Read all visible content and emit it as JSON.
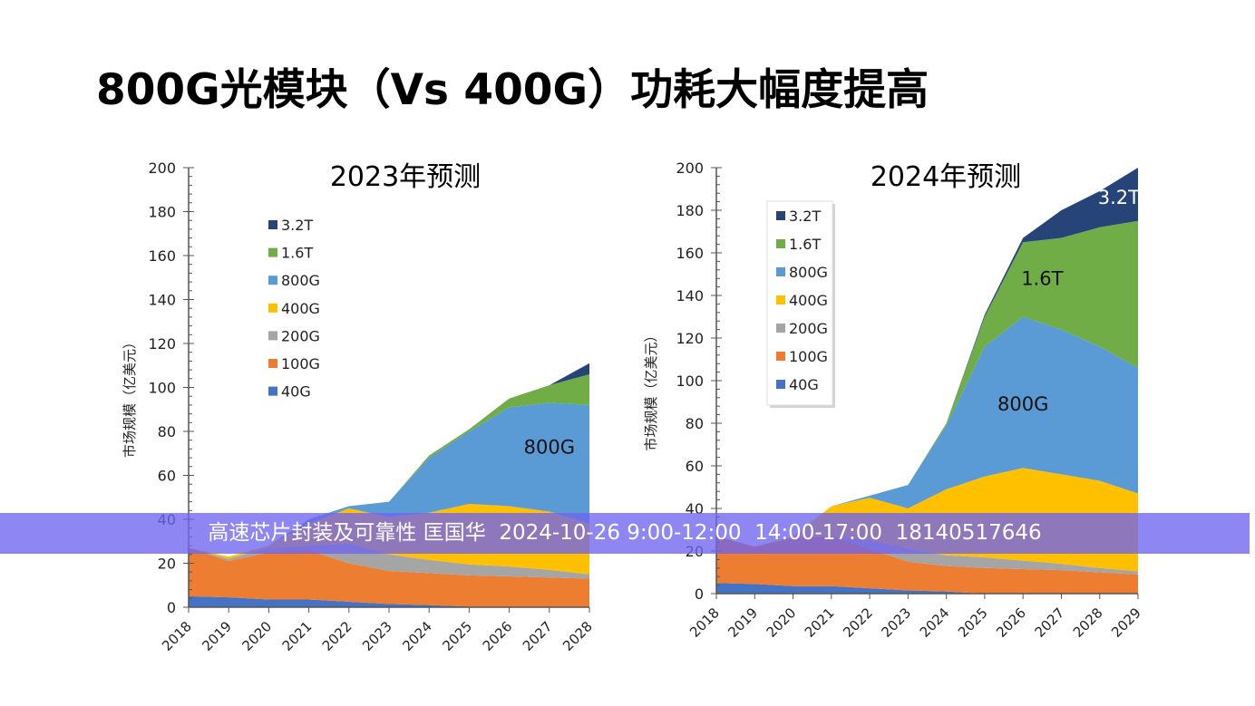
{
  "title": "800G光模块（Vs 400G）功耗大幅度提高",
  "banner": "高速芯片封装及可靠性 匡国华  2024-10-26 9:00-12:00  14:00-17:00  18140517646",
  "colors": {
    "40G": "#4472C4",
    "100G": "#ED7D31",
    "200G": "#A5A5A5",
    "400G": "#FFC000",
    "800G": "#5B9BD5",
    "1.6T": "#70AD47",
    "3.2T": "#264478",
    "banner": "#6E64F0"
  },
  "chart_data": [
    {
      "type": "area",
      "stacked": true,
      "title": "2023年预测",
      "ylabel": "市场规模（亿美元）",
      "xlabel": "",
      "ylim": [
        0,
        200
      ],
      "yticks": [
        0,
        20,
        40,
        60,
        80,
        100,
        120,
        140,
        160,
        180,
        200
      ],
      "categories": [
        "2018",
        "2019",
        "2020",
        "2021",
        "2022",
        "2023",
        "2024",
        "2025",
        "2026",
        "2027",
        "2028"
      ],
      "legend_position": "upper-left",
      "legend_order": [
        "3.2T",
        "1.6T",
        "800G",
        "400G",
        "200G",
        "100G",
        "40G"
      ],
      "series": [
        {
          "name": "40G",
          "values": [
            5,
            4.5,
            3.5,
            3.5,
            2.5,
            1.5,
            1,
            0.3,
            0,
            0,
            0
          ]
        },
        {
          "name": "100G",
          "values": [
            22,
            16.5,
            21.5,
            22.5,
            17.5,
            15,
            14.5,
            14.2,
            14,
            13.5,
            13
          ]
        },
        {
          "name": "200G",
          "values": [
            0,
            1,
            2,
            2,
            9,
            7.5,
            6,
            5,
            4.5,
            3.5,
            2
          ]
        },
        {
          "name": "400G",
          "values": [
            0,
            1,
            1,
            10,
            16,
            17,
            21.5,
            27.5,
            27.5,
            26.5,
            23
          ]
        },
        {
          "name": "800G",
          "values": [
            0,
            0,
            0,
            2,
            1,
            7,
            25,
            33,
            45,
            49.5,
            54
          ]
        },
        {
          "name": "1.6T",
          "values": [
            0,
            0,
            0,
            0,
            0,
            0,
            1,
            1,
            4,
            8,
            14
          ]
        },
        {
          "name": "3.2T",
          "values": [
            0,
            0,
            0,
            0,
            0,
            0,
            0,
            0,
            0,
            0,
            5
          ]
        }
      ],
      "annotations": [
        {
          "text": "800G",
          "x": "2027",
          "y": 70
        }
      ]
    },
    {
      "type": "area",
      "stacked": true,
      "title": "2024年预测",
      "ylabel": "市场规模（亿美元）",
      "xlabel": "",
      "ylim": [
        0,
        200
      ],
      "yticks": [
        0,
        20,
        40,
        60,
        80,
        100,
        120,
        140,
        160,
        180,
        200
      ],
      "categories": [
        "2018",
        "2019",
        "2020",
        "2021",
        "2022",
        "2023",
        "2024",
        "2025",
        "2026",
        "2027",
        "2028",
        "2029"
      ],
      "legend_position": "upper-left",
      "legend_order": [
        "3.2T",
        "1.6T",
        "800G",
        "400G",
        "200G",
        "100G",
        "40G"
      ],
      "series": [
        {
          "name": "40G",
          "values": [
            5,
            4.5,
            3.5,
            3.5,
            2.5,
            1.5,
            1,
            0,
            0,
            0,
            0,
            0
          ]
        },
        {
          "name": "100G",
          "values": [
            22,
            17.5,
            22.5,
            23.5,
            18.5,
            13.5,
            12,
            12,
            11.5,
            11,
            10,
            9
          ]
        },
        {
          "name": "200G",
          "values": [
            0,
            0,
            0,
            0,
            4,
            6,
            5,
            5,
            4,
            3,
            2,
            1.5
          ]
        },
        {
          "name": "400G",
          "values": [
            0,
            0,
            1,
            14,
            20,
            19,
            31,
            38,
            43.5,
            42,
            41,
            36.5
          ]
        },
        {
          "name": "800G",
          "values": [
            0,
            0,
            0,
            0,
            1,
            11,
            30,
            61,
            71,
            68,
            63,
            59
          ]
        },
        {
          "name": "1.6T",
          "values": [
            0,
            0,
            0,
            0,
            0,
            0,
            1,
            14,
            35,
            43,
            56,
            69
          ]
        },
        {
          "name": "3.2T",
          "values": [
            0,
            0,
            0,
            0,
            0,
            0,
            0,
            1,
            2,
            13,
            17,
            25
          ]
        }
      ],
      "annotations": [
        {
          "text": "800G",
          "x": "2026",
          "y": 86
        },
        {
          "text": "1.6T",
          "x": "2026.5",
          "y": 145
        },
        {
          "text": "3.2T",
          "x": "2028.5",
          "y": 183
        }
      ]
    }
  ]
}
